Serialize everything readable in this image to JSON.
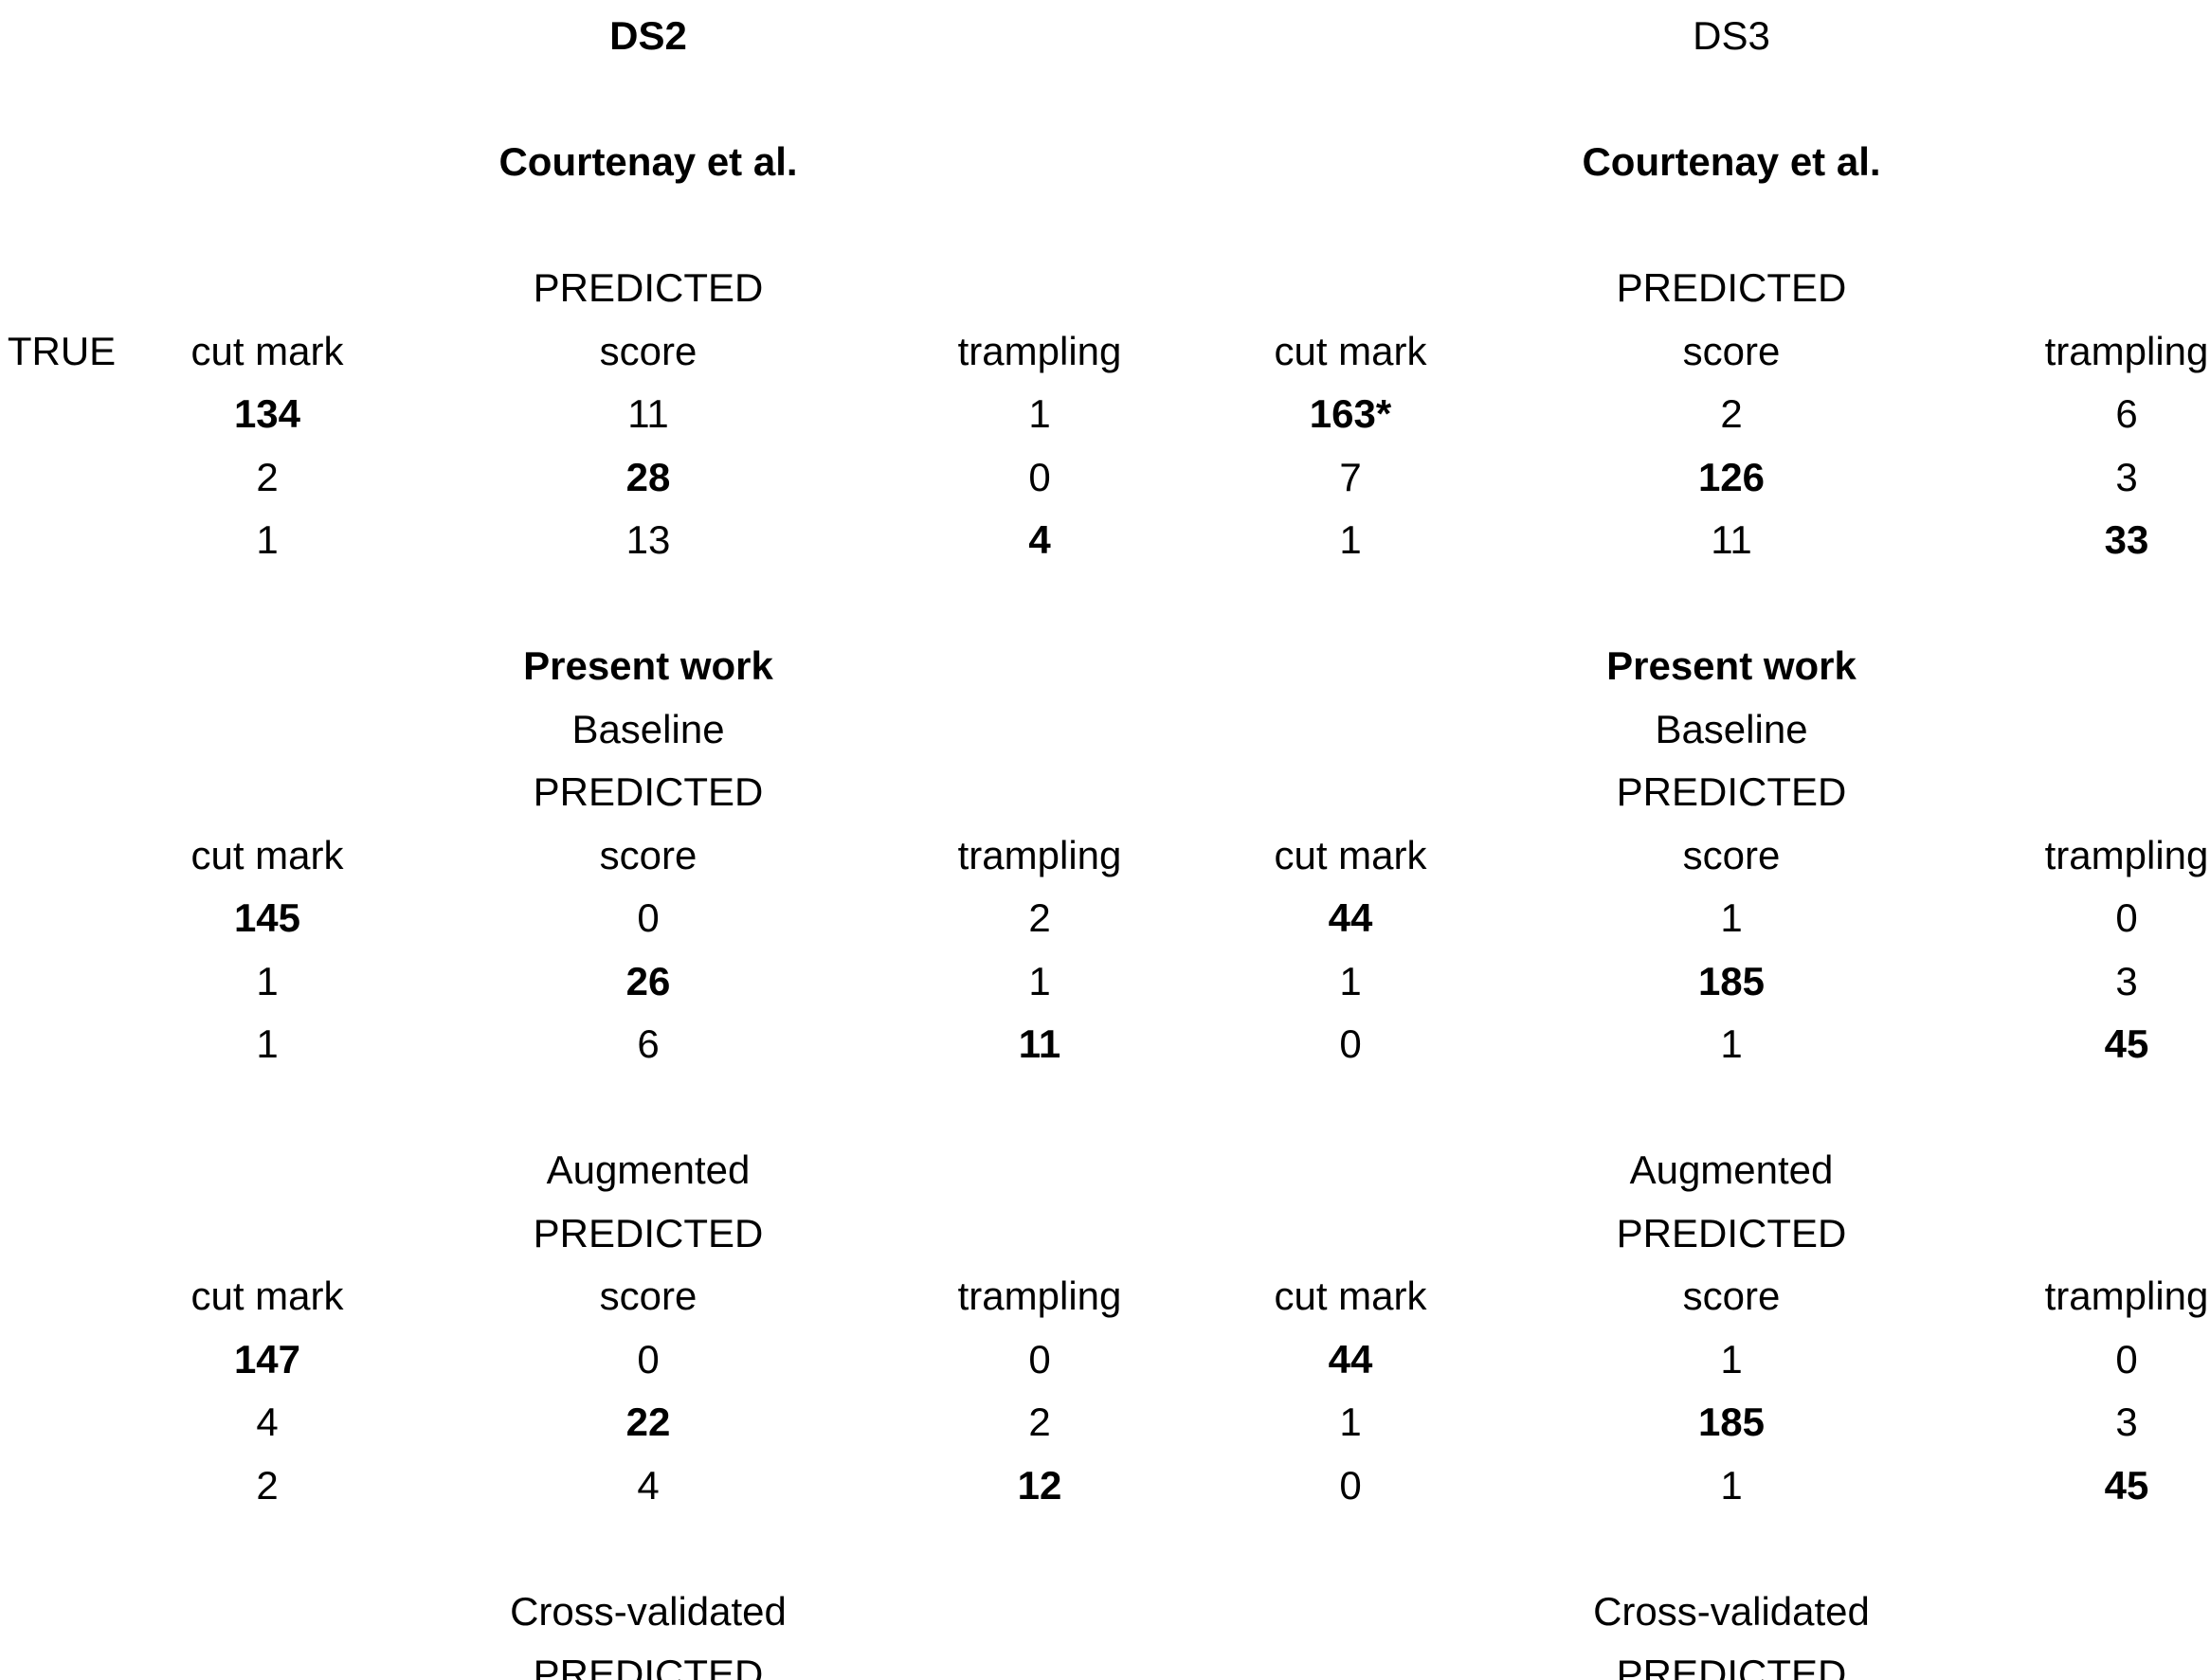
{
  "labels": {
    "true": "TRUE",
    "predicted": "PREDICTED",
    "cut_mark": "cut mark",
    "score": "score",
    "trampling": "trampling"
  },
  "ds2": {
    "title": "DS2",
    "courtenay": {
      "heading": "Courtenay et al.",
      "rows": [
        [
          "134",
          "11",
          "1"
        ],
        [
          "2",
          "28",
          "0"
        ],
        [
          "1",
          "13",
          "4"
        ]
      ]
    },
    "present_baseline": {
      "heading": "Present work",
      "subheading": "Baseline",
      "rows": [
        [
          "145",
          "0",
          "2"
        ],
        [
          "1",
          "26",
          "1"
        ],
        [
          "1",
          "6",
          "11"
        ]
      ]
    },
    "augmented": {
      "heading": "Augmented",
      "rows": [
        [
          "147",
          "0",
          "0"
        ],
        [
          "4",
          "22",
          "2"
        ],
        [
          "2",
          "4",
          "12"
        ]
      ]
    },
    "cross_validated": {
      "heading": "Cross-validated"
    }
  },
  "ds3": {
    "title": "DS3",
    "courtenay": {
      "heading": "Courtenay et al.",
      "rows": [
        [
          "163*",
          "2",
          "6"
        ],
        [
          "7",
          "126",
          "3"
        ],
        [
          "1",
          "11",
          "33"
        ]
      ]
    },
    "present_baseline": {
      "heading": "Present work",
      "subheading": "Baseline",
      "rows": [
        [
          "44",
          "1",
          "0"
        ],
        [
          "1",
          "185",
          "3"
        ],
        [
          "0",
          "1",
          "45"
        ]
      ]
    },
    "augmented": {
      "heading": "Augmented",
      "rows": [
        [
          "44",
          "1",
          "0"
        ],
        [
          "1",
          "185",
          "3"
        ],
        [
          "0",
          "1",
          "45"
        ]
      ]
    },
    "cross_validated": {
      "heading": "Cross-validated"
    }
  }
}
